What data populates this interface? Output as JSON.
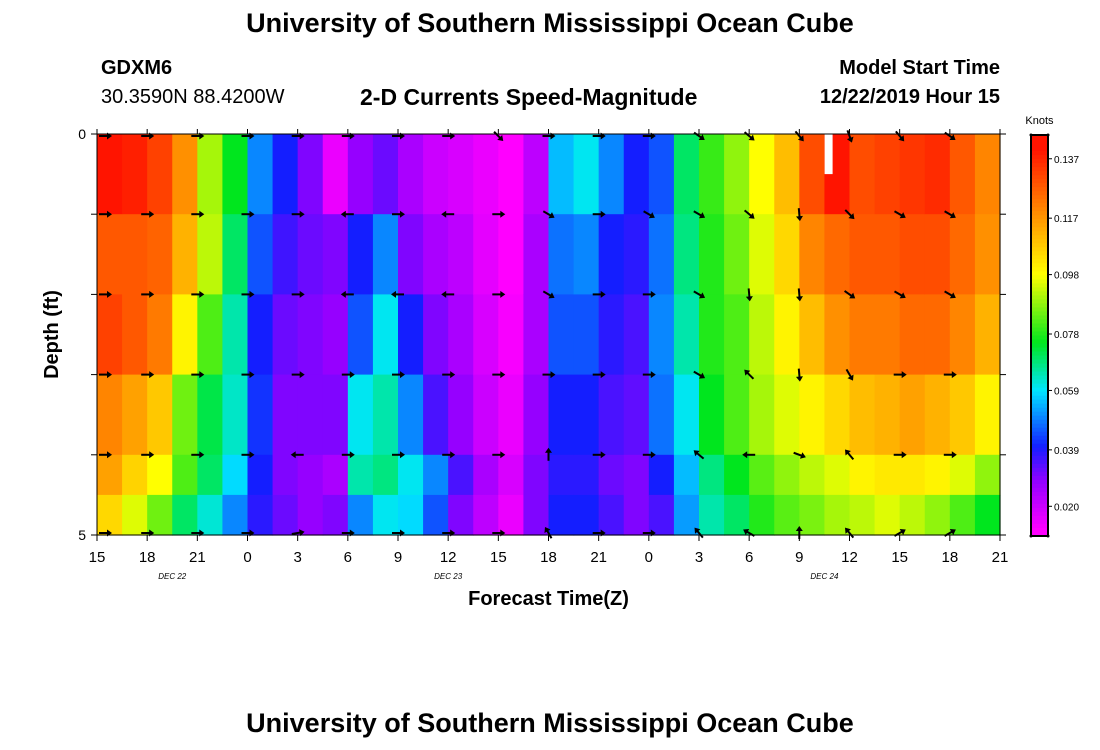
{
  "header": {
    "title": "University of Southern Mississippi Ocean Cube",
    "station_id": "GDXM6",
    "station_coords": "30.3590N 88.4200W",
    "plot_title": "2-D Currents Speed-Magnitude",
    "model_start_label": "Model Start Time",
    "model_start_value": "12/22/2019 Hour 15"
  },
  "footer": {
    "title": "University of Southern Mississippi Ocean Cube"
  },
  "chart_data": {
    "type": "heatmap",
    "title": "2-D Currents Speed-Magnitude",
    "xlabel": "Forecast Time(Z)",
    "ylabel": "Depth (ft)",
    "x_tick_labels": [
      "15",
      "18",
      "21",
      "0",
      "3",
      "6",
      "9",
      "12",
      "15",
      "18",
      "21",
      "0",
      "3",
      "6",
      "9",
      "12",
      "15",
      "18",
      "21"
    ],
    "x_hours": [
      0,
      54
    ],
    "date_labels": [
      {
        "text": "DEC 22",
        "hour": 4.5
      },
      {
        "text": "DEC 23",
        "hour": 21
      },
      {
        "text": "DEC 24",
        "hour": 43.5
      }
    ],
    "y_tick_labels": [
      "0",
      "",
      "",
      "",
      "",
      "5"
    ],
    "ylim": [
      0,
      5
    ],
    "colorbar": {
      "unit": "Knots",
      "ticks": [
        0.137,
        0.117,
        0.098,
        0.078,
        0.059,
        0.039,
        0.02
      ],
      "range": [
        0.01,
        0.145
      ]
    },
    "depth_layers": [
      "0-1",
      "1-2",
      "2-3",
      "3-4",
      "4-4.5",
      "4.5-5"
    ],
    "speed_columns": [
      [
        0.14,
        0.128,
        0.132,
        0.12,
        0.115,
        0.105
      ],
      [
        0.138,
        0.128,
        0.128,
        0.115,
        0.106,
        0.095
      ],
      [
        0.132,
        0.126,
        0.122,
        0.108,
        0.098,
        0.085
      ],
      [
        0.118,
        0.112,
        0.1,
        0.085,
        0.082,
        0.07
      ],
      [
        0.09,
        0.092,
        0.082,
        0.072,
        0.07,
        0.062
      ],
      [
        0.075,
        0.07,
        0.065,
        0.063,
        0.058,
        0.05
      ],
      [
        0.05,
        0.045,
        0.04,
        0.042,
        0.04,
        0.038
      ],
      [
        0.04,
        0.036,
        0.032,
        0.03,
        0.03,
        0.032
      ],
      [
        0.03,
        0.032,
        0.03,
        0.03,
        0.028,
        0.028
      ],
      [
        0.015,
        0.03,
        0.028,
        0.03,
        0.025,
        0.03
      ],
      [
        0.028,
        0.04,
        0.045,
        0.06,
        0.065,
        0.05
      ],
      [
        0.032,
        0.05,
        0.06,
        0.065,
        0.068,
        0.06
      ],
      [
        0.025,
        0.03,
        0.04,
        0.05,
        0.06,
        0.058
      ],
      [
        0.02,
        0.025,
        0.03,
        0.035,
        0.05,
        0.045
      ],
      [
        0.018,
        0.022,
        0.025,
        0.028,
        0.035,
        0.03
      ],
      [
        0.015,
        0.016,
        0.018,
        0.02,
        0.025,
        0.022
      ],
      [
        0.012,
        0.012,
        0.013,
        0.015,
        0.018,
        0.015
      ],
      [
        0.022,
        0.025,
        0.025,
        0.028,
        0.03,
        0.03
      ],
      [
        0.055,
        0.048,
        0.045,
        0.04,
        0.038,
        0.04
      ],
      [
        0.06,
        0.05,
        0.045,
        0.04,
        0.038,
        0.04
      ],
      [
        0.05,
        0.04,
        0.038,
        0.035,
        0.032,
        0.035
      ],
      [
        0.04,
        0.038,
        0.035,
        0.033,
        0.03,
        0.03
      ],
      [
        0.045,
        0.048,
        0.05,
        0.048,
        0.04,
        0.035
      ],
      [
        0.07,
        0.068,
        0.065,
        0.06,
        0.055,
        0.052
      ],
      [
        0.08,
        0.078,
        0.078,
        0.075,
        0.068,
        0.065
      ],
      [
        0.088,
        0.085,
        0.082,
        0.082,
        0.075,
        0.07
      ],
      [
        0.098,
        0.095,
        0.092,
        0.09,
        0.083,
        0.078
      ],
      [
        0.11,
        0.105,
        0.1,
        0.095,
        0.088,
        0.083
      ],
      [
        0.13,
        0.12,
        0.11,
        0.1,
        0.092,
        0.086
      ],
      [
        0.14,
        0.125,
        0.118,
        0.105,
        0.095,
        0.09
      ],
      [
        0.13,
        0.128,
        0.122,
        0.11,
        0.1,
        0.092
      ],
      [
        0.132,
        0.128,
        0.122,
        0.112,
        0.102,
        0.095
      ],
      [
        0.134,
        0.13,
        0.125,
        0.115,
        0.102,
        0.092
      ],
      [
        0.136,
        0.13,
        0.125,
        0.112,
        0.1,
        0.088
      ],
      [
        0.128,
        0.125,
        0.12,
        0.108,
        0.095,
        0.082
      ],
      [
        0.12,
        0.118,
        0.112,
        0.1,
        0.088,
        0.075
      ]
    ],
    "vector_rows_ft": [
      0,
      1,
      2,
      3,
      4,
      5
    ],
    "vector_hours": [
      0,
      3,
      6,
      9,
      12,
      15,
      18,
      21,
      24,
      27,
      30,
      33,
      36,
      39,
      42,
      45,
      48,
      51
    ],
    "vector_directions_deg": [
      [
        0,
        0,
        0,
        0,
        0,
        0,
        0,
        0,
        45,
        0,
        0,
        0,
        35,
        40,
        50,
        70,
        50,
        35
      ],
      [
        0,
        0,
        0,
        0,
        0,
        180,
        0,
        180,
        0,
        30,
        0,
        30,
        30,
        40,
        85,
        45,
        30,
        30
      ],
      [
        0,
        0,
        0,
        0,
        0,
        180,
        180,
        180,
        0,
        30,
        0,
        0,
        30,
        85,
        85,
        35,
        30,
        30
      ],
      [
        0,
        0,
        0,
        0,
        0,
        0,
        0,
        0,
        0,
        0,
        0,
        0,
        30,
        -135,
        85,
        60,
        0,
        0
      ],
      [
        0,
        0,
        0,
        0,
        180,
        0,
        0,
        0,
        0,
        -90,
        0,
        0,
        -140,
        180,
        20,
        -130,
        0,
        0
      ],
      [
        0,
        0,
        0,
        0,
        -10,
        0,
        0,
        0,
        0,
        -120,
        0,
        0,
        -130,
        -150,
        -90,
        -130,
        -30,
        -30
      ]
    ],
    "missing_cell": {
      "hour": 43.75,
      "depth_ft": [
        0,
        0.5
      ]
    }
  }
}
